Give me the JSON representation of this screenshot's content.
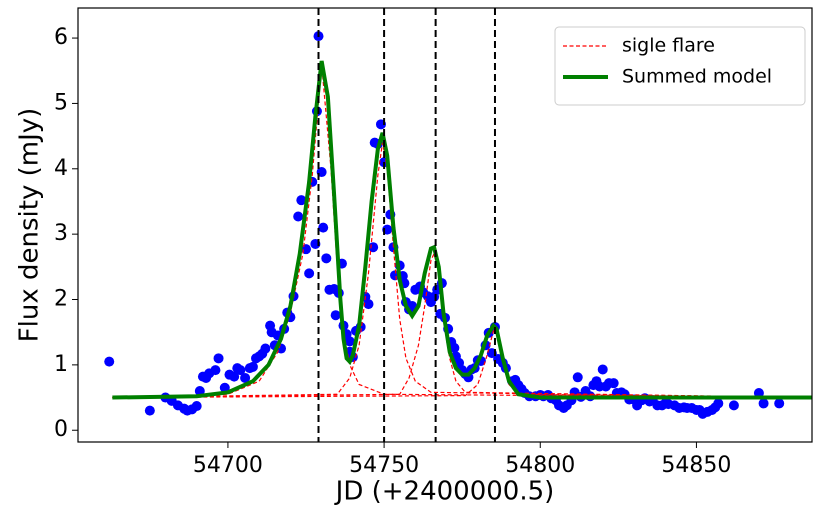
{
  "chart_data": {
    "type": "scatter",
    "xlabel": "JD (+2400000.5)",
    "ylabel": "Flux density (mJy)",
    "xlim": [
      54652,
      54887
    ],
    "ylim": [
      -0.18,
      6.46
    ],
    "xticks": [
      54700,
      54750,
      54800,
      54850
    ],
    "yticks": [
      0,
      1,
      2,
      3,
      4,
      5,
      6
    ],
    "legend": "upper right",
    "vlines": [
      54729,
      54750,
      54766.5,
      54785.5
    ],
    "vline_color": "#000000",
    "series": [
      {
        "type": "scatter",
        "color": "#0000ff",
        "x": [
          54662,
          54675,
          54680,
          54682,
          54684,
          54686,
          54687,
          54688.5,
          54690,
          54691,
          54692,
          54693,
          54694,
          54696,
          54697,
          54699,
          54700.5,
          54702,
          54703,
          54704,
          54705.5,
          54707,
          54708,
          54709,
          54710,
          54711,
          54712,
          54713.5,
          54714,
          54715,
          54716,
          54717,
          54718,
          54719,
          54720,
          54721,
          54722.5,
          54723.5,
          54725,
          54726,
          54727,
          54728,
          54728.5,
          54729,
          54730,
          54730.5,
          54731.5,
          54732.5,
          54734,
          54734.5,
          54735.5,
          54736.5,
          54737,
          54738,
          54739,
          54739,
          54740,
          54741,
          54742.5,
          54744,
          54745,
          54746.5,
          54747,
          54748,
          54749,
          54750,
          54751,
          54752,
          54753,
          54753.5,
          54755,
          54756,
          54756.5,
          54757,
          54758,
          54759,
          54760,
          54761.5,
          54762.5,
          54764,
          54765,
          54766,
          54767,
          54768,
          54768.5,
          54769.5,
          54770.5,
          54771.5,
          54772.5,
          54773,
          54774,
          54775,
          54776,
          54777,
          54778,
          54779,
          54780,
          54781,
          54782.5,
          54783.5,
          54784.5,
          54785.5,
          54786.5,
          54788,
          54789,
          54791,
          54792,
          54793,
          54794,
          54795,
          54796.5,
          54798.5,
          54800,
          54801,
          54802.5,
          54803.5,
          54805,
          54806,
          54807.5,
          54808.5,
          54810,
          54811,
          54812,
          54813,
          54814.5,
          54816,
          54817,
          54818,
          54819,
          54820,
          54821,
          54822,
          54823.5,
          54824.5,
          54826,
          54827,
          54828.5,
          54830,
          54831,
          54832.5,
          54833.5,
          54835,
          54836,
          54837.5,
          54839,
          54840,
          54841,
          54843,
          54844.5,
          54846,
          54847,
          54848.5,
          54850,
          54851,
          54852,
          54853.5,
          54855,
          54856,
          54857,
          54862,
          54870,
          54871.5,
          54876.5
        ],
        "values": [
          1.05,
          0.3,
          0.5,
          0.45,
          0.38,
          0.33,
          0.3,
          0.32,
          0.37,
          0.6,
          0.82,
          0.8,
          0.87,
          0.92,
          1.1,
          0.65,
          0.85,
          0.82,
          0.95,
          0.92,
          0.8,
          0.95,
          0.97,
          1.1,
          1.13,
          1.17,
          1.25,
          1.6,
          1.5,
          1.3,
          1.45,
          1.25,
          1.55,
          1.8,
          1.73,
          2.05,
          3.27,
          3.52,
          2.77,
          2.4,
          3.8,
          2.85,
          4.88,
          6.03,
          3.95,
          3.1,
          2.63,
          2.15,
          2.16,
          1.76,
          2.1,
          2.55,
          1.6,
          1.47,
          1.2,
          1.36,
          1.12,
          1.52,
          1.58,
          2.04,
          1.93,
          2.8,
          4.4,
          4.38,
          4.68,
          4.1,
          3.07,
          3.3,
          2.8,
          2.37,
          2.52,
          2.36,
          2.25,
          1.96,
          1.85,
          1.9,
          2.15,
          2.2,
          2.11,
          2.05,
          1.96,
          2.04,
          2.15,
          1.78,
          2.25,
          1.72,
          1.55,
          1.35,
          1.26,
          1.13,
          1.03,
          0.92,
          0.86,
          0.81,
          0.93,
          0.95,
          1.07,
          1.06,
          1.3,
          1.49,
          1.18,
          1.58,
          1.09,
          1.03,
          0.95,
          0.75,
          0.77,
          0.69,
          0.63,
          0.57,
          0.52,
          0.52,
          0.54,
          0.52,
          0.54,
          0.49,
          0.46,
          0.38,
          0.34,
          0.38,
          0.46,
          0.58,
          0.81,
          0.51,
          0.6,
          0.52,
          0.69,
          0.75,
          0.67,
          0.93,
          0.67,
          0.72,
          0.72,
          0.57,
          0.58,
          0.55,
          0.47,
          0.47,
          0.38,
          0.46,
          0.49,
          0.44,
          0.46,
          0.38,
          0.38,
          0.41,
          0.4,
          0.38,
          0.34,
          0.35,
          0.34,
          0.34,
          0.31,
          0.31,
          0.25,
          0.28,
          0.31,
          0.35,
          0.41,
          0.38,
          0.57,
          0.41,
          0.41
        ]
      },
      {
        "type": "line",
        "name": "sigle flare",
        "color": "#ff0000",
        "dashed": true,
        "width": 1.2,
        "curves": [
          {
            "x": [
              54663,
              54700,
              54710,
              54716,
              54720,
              54724,
              54727,
              54730,
              54733,
              54735,
              54737,
              54739,
              54742,
              54750,
              54887
            ],
            "values": [
              0.5,
              0.55,
              0.75,
              1.2,
              1.8,
              2.7,
              3.9,
              5.6,
              4.0,
              2.5,
              1.5,
              1.0,
              0.7,
              0.55,
              0.5
            ]
          },
          {
            "x": [
              54663,
              54735,
              54739,
              54742,
              54745,
              54748,
              54749.5,
              54751,
              54753,
              54755,
              54757,
              54760,
              54765,
              54887
            ],
            "values": [
              0.5,
              0.55,
              0.8,
              1.3,
              2.4,
              3.9,
              4.4,
              4.0,
              2.8,
              1.7,
              1.1,
              0.75,
              0.58,
              0.5
            ]
          },
          {
            "x": [
              54663,
              54755,
              54758,
              54761,
              54763,
              54765,
              54766,
              54767.5,
              54769,
              54771,
              54773,
              54776,
              54887
            ],
            "values": [
              0.5,
              0.55,
              0.8,
              1.3,
              1.9,
              2.6,
              2.7,
              2.4,
              1.7,
              1.1,
              0.75,
              0.58,
              0.5
            ]
          },
          {
            "x": [
              54663,
              54776,
              54780,
              54783,
              54785,
              54786,
              54788,
              54790,
              54793,
              54887
            ],
            "values": [
              0.5,
              0.53,
              0.7,
              1.15,
              1.52,
              1.5,
              1.05,
              0.7,
              0.55,
              0.5
            ]
          }
        ]
      },
      {
        "type": "line",
        "name": "Summed model",
        "color": "#008000",
        "width": 4,
        "curves": [
          {
            "x": [
              54663,
              54690,
              54700,
              54708,
              54713,
              54717,
              54720,
              54723,
              54726,
              54728,
              54730,
              54732,
              54734,
              54736,
              54737,
              54738,
              54739,
              54740,
              54742,
              54744,
              54746,
              54748,
              54749.5,
              54751,
              54753,
              54755,
              54757,
              54759,
              54761,
              54763,
              54765,
              54766,
              54767.5,
              54769,
              54771,
              54773,
              54775,
              54777,
              54779,
              54781,
              54783,
              54785,
              54786,
              54788,
              54790,
              54793,
              54800,
              54887
            ],
            "values": [
              0.5,
              0.52,
              0.58,
              0.75,
              1.0,
              1.4,
              1.9,
              2.7,
              3.8,
              4.8,
              5.65,
              5.1,
              3.6,
              2.0,
              1.4,
              1.1,
              1.05,
              1.15,
              1.6,
              2.5,
              3.5,
              4.3,
              4.55,
              4.2,
              3.1,
              2.3,
              1.9,
              1.75,
              1.9,
              2.4,
              2.78,
              2.8,
              2.5,
              1.8,
              1.2,
              0.95,
              0.85,
              0.85,
              0.95,
              1.15,
              1.45,
              1.6,
              1.55,
              1.1,
              0.75,
              0.55,
              0.5,
              0.5
            ]
          }
        ]
      }
    ]
  }
}
